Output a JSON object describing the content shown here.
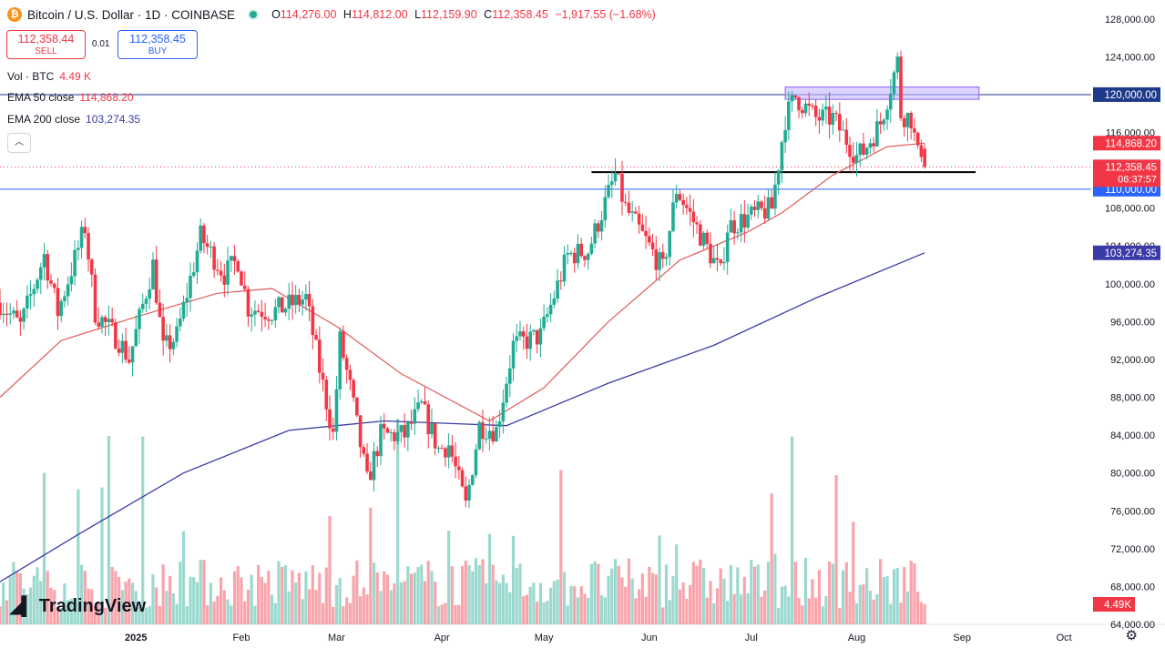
{
  "header": {
    "symbol_icon": "bitcoin-icon",
    "title": "Bitcoin / U.S. Dollar · 1D · COINBASE",
    "ohlc": [
      {
        "key": "O",
        "value": "114,276.00"
      },
      {
        "key": "H",
        "value": "114,812.00"
      },
      {
        "key": "L",
        "value": "112,159.90"
      },
      {
        "key": "C",
        "value": "112,358.45"
      }
    ],
    "change": "−1,917.55 (−1.68%)"
  },
  "trade": {
    "sell_price": "112,358.44",
    "sell_label": "SELL",
    "spread": "0.01",
    "buy_price": "112,358.45",
    "buy_label": "BUY"
  },
  "indicators": {
    "volume": {
      "label": "Vol · BTC",
      "value": "4.49 K"
    },
    "ema50": {
      "label": "EMA 50 close",
      "value": "114,868.20"
    },
    "ema200": {
      "label": "EMA 200 close",
      "value": "103,274.35"
    }
  },
  "branding": {
    "logo_text": "TradingView"
  },
  "colors": {
    "up": "#22ab94",
    "down": "#f23645",
    "ema50": "#e05a5a",
    "ema200": "#3a3aa8",
    "hline": "#2962ff",
    "zone": "#c7b6ff"
  },
  "chart_data": {
    "type": "candlestick",
    "title": "Bitcoin / U.S. Dollar · 1D · COINBASE",
    "ylim": [
      64000,
      130000
    ],
    "y_ticks": [
      "128,000.00",
      "124,000.00",
      "120,000.00",
      "116,000.00",
      "112,000.00",
      "108,000.00",
      "104,000.00",
      "100,000.00",
      "96,000.00",
      "92,000.00",
      "88,000.00",
      "84,000.00",
      "80,000.00",
      "76,000.00",
      "72,000.00",
      "68,000.00",
      "64,000.00"
    ],
    "x_ticks": [
      {
        "label": "2025",
        "date": "2025-01-01",
        "bold": true
      },
      {
        "label": "Feb",
        "date": "2025-02-01"
      },
      {
        "label": "Mar",
        "date": "2025-03-01"
      },
      {
        "label": "Apr",
        "date": "2025-04-01"
      },
      {
        "label": "May",
        "date": "2025-05-01"
      },
      {
        "label": "Jun",
        "date": "2025-06-01"
      },
      {
        "label": "Jul",
        "date": "2025-07-01"
      },
      {
        "label": "Aug",
        "date": "2025-08-01"
      },
      {
        "label": "Sep",
        "date": "2025-09-01"
      },
      {
        "label": "Oct",
        "date": "2025-10-01"
      }
    ],
    "x_range": [
      "2024-11-22",
      "2025-10-09"
    ],
    "price_path": {
      "start": "2024-11-22",
      "points": [
        [
          "2024-11-22",
          98000
        ],
        [
          "2024-11-28",
          95500
        ],
        [
          "2024-12-05",
          103000
        ],
        [
          "2024-12-09",
          97000
        ],
        [
          "2024-12-17",
          106000
        ],
        [
          "2024-12-20",
          97000
        ],
        [
          "2024-12-27",
          94000
        ],
        [
          "2024-12-30",
          92000
        ],
        [
          "2025-01-06",
          102000
        ],
        [
          "2025-01-09",
          93000
        ],
        [
          "2025-01-13",
          94500
        ],
        [
          "2025-01-20",
          105000
        ],
        [
          "2025-01-27",
          101000
        ],
        [
          "2025-01-31",
          102500
        ],
        [
          "2025-02-03",
          97500
        ],
        [
          "2025-02-10",
          97000
        ],
        [
          "2025-02-20",
          98500
        ],
        [
          "2025-02-24",
          91000
        ],
        [
          "2025-02-28",
          84000
        ],
        [
          "2025-03-02",
          94000
        ],
        [
          "2025-03-05",
          89000
        ],
        [
          "2025-03-10",
          79000
        ],
        [
          "2025-03-14",
          84000
        ],
        [
          "2025-03-21",
          84000
        ],
        [
          "2025-03-26",
          87000
        ],
        [
          "2025-03-31",
          82500
        ],
        [
          "2025-04-03",
          83000
        ],
        [
          "2025-04-08",
          76500
        ],
        [
          "2025-04-12",
          85000
        ],
        [
          "2025-04-17",
          84500
        ],
        [
          "2025-04-22",
          93500
        ],
        [
          "2025-04-30",
          94500
        ],
        [
          "2025-05-08",
          103000
        ],
        [
          "2025-05-14",
          103500
        ],
        [
          "2025-05-22",
          111500
        ],
        [
          "2025-05-25",
          108000
        ],
        [
          "2025-05-31",
          104500
        ],
        [
          "2025-06-05",
          101500
        ],
        [
          "2025-06-09",
          110000
        ],
        [
          "2025-06-12",
          108000
        ],
        [
          "2025-06-17",
          104500
        ],
        [
          "2025-06-22",
          101000
        ],
        [
          "2025-06-24",
          106000
        ],
        [
          "2025-06-30",
          107000
        ],
        [
          "2025-07-07",
          108000
        ],
        [
          "2025-07-11",
          117500
        ],
        [
          "2025-07-14",
          119800
        ],
        [
          "2025-07-20",
          117500
        ],
        [
          "2025-07-25",
          117500
        ],
        [
          "2025-08-01",
          113500
        ],
        [
          "2025-08-03",
          114000
        ],
        [
          "2025-08-08",
          117000
        ],
        [
          "2025-08-13",
          123500
        ],
        [
          "2025-08-14",
          118000
        ],
        [
          "2025-08-17",
          117500
        ],
        [
          "2025-08-19",
          113500
        ],
        [
          "2025-08-20",
          114276
        ],
        [
          "2025-08-21",
          112358
        ]
      ]
    },
    "ema50": {
      "label": "EMA 50 close",
      "last": 114868.2,
      "points": [
        [
          "2024-11-22",
          88000
        ],
        [
          "2024-12-10",
          94000
        ],
        [
          "2025-01-01",
          96500
        ],
        [
          "2025-01-25",
          99000
        ],
        [
          "2025-02-10",
          99500
        ],
        [
          "2025-03-01",
          95500
        ],
        [
          "2025-03-20",
          90500
        ],
        [
          "2025-04-15",
          85500
        ],
        [
          "2025-05-01",
          89000
        ],
        [
          "2025-05-20",
          96000
        ],
        [
          "2025-06-10",
          102500
        ],
        [
          "2025-06-30",
          105500
        ],
        [
          "2025-07-10",
          107500
        ],
        [
          "2025-07-25",
          111500
        ],
        [
          "2025-08-10",
          114500
        ],
        [
          "2025-08-21",
          114868
        ]
      ]
    },
    "ema200": {
      "label": "EMA 200 close",
      "last": 103274.35,
      "points": [
        [
          "2024-11-22",
          68500
        ],
        [
          "2024-12-15",
          73500
        ],
        [
          "2025-01-15",
          80000
        ],
        [
          "2025-02-15",
          84500
        ],
        [
          "2025-03-15",
          85500
        ],
        [
          "2025-04-20",
          85000
        ],
        [
          "2025-05-20",
          89500
        ],
        [
          "2025-06-20",
          93500
        ],
        [
          "2025-07-20",
          98500
        ],
        [
          "2025-08-21",
          103274
        ]
      ]
    },
    "horizontal_lines": [
      {
        "price": 120000,
        "label": "120,000.00",
        "color": "#1e3a8a"
      },
      {
        "price": 110000,
        "label": "110,000.00",
        "color": "#2962ff"
      }
    ],
    "support_segment": {
      "price": 111800,
      "from": "2025-05-15",
      "to": "2025-09-05"
    },
    "resistance_zone": {
      "low": 119500,
      "high": 120800,
      "from": "2025-07-11",
      "to": "2025-09-06"
    },
    "current_price": {
      "price": 112358.45,
      "label": "112,358.45",
      "countdown": "06:37:57"
    },
    "price_badges": [
      {
        "price": 114868.2,
        "label": "114,868.20",
        "color": "#f23645"
      },
      {
        "price": 103274.35,
        "label": "103,274.35",
        "color": "#3a3aa8"
      }
    ],
    "volume_badge": "4.49K"
  }
}
